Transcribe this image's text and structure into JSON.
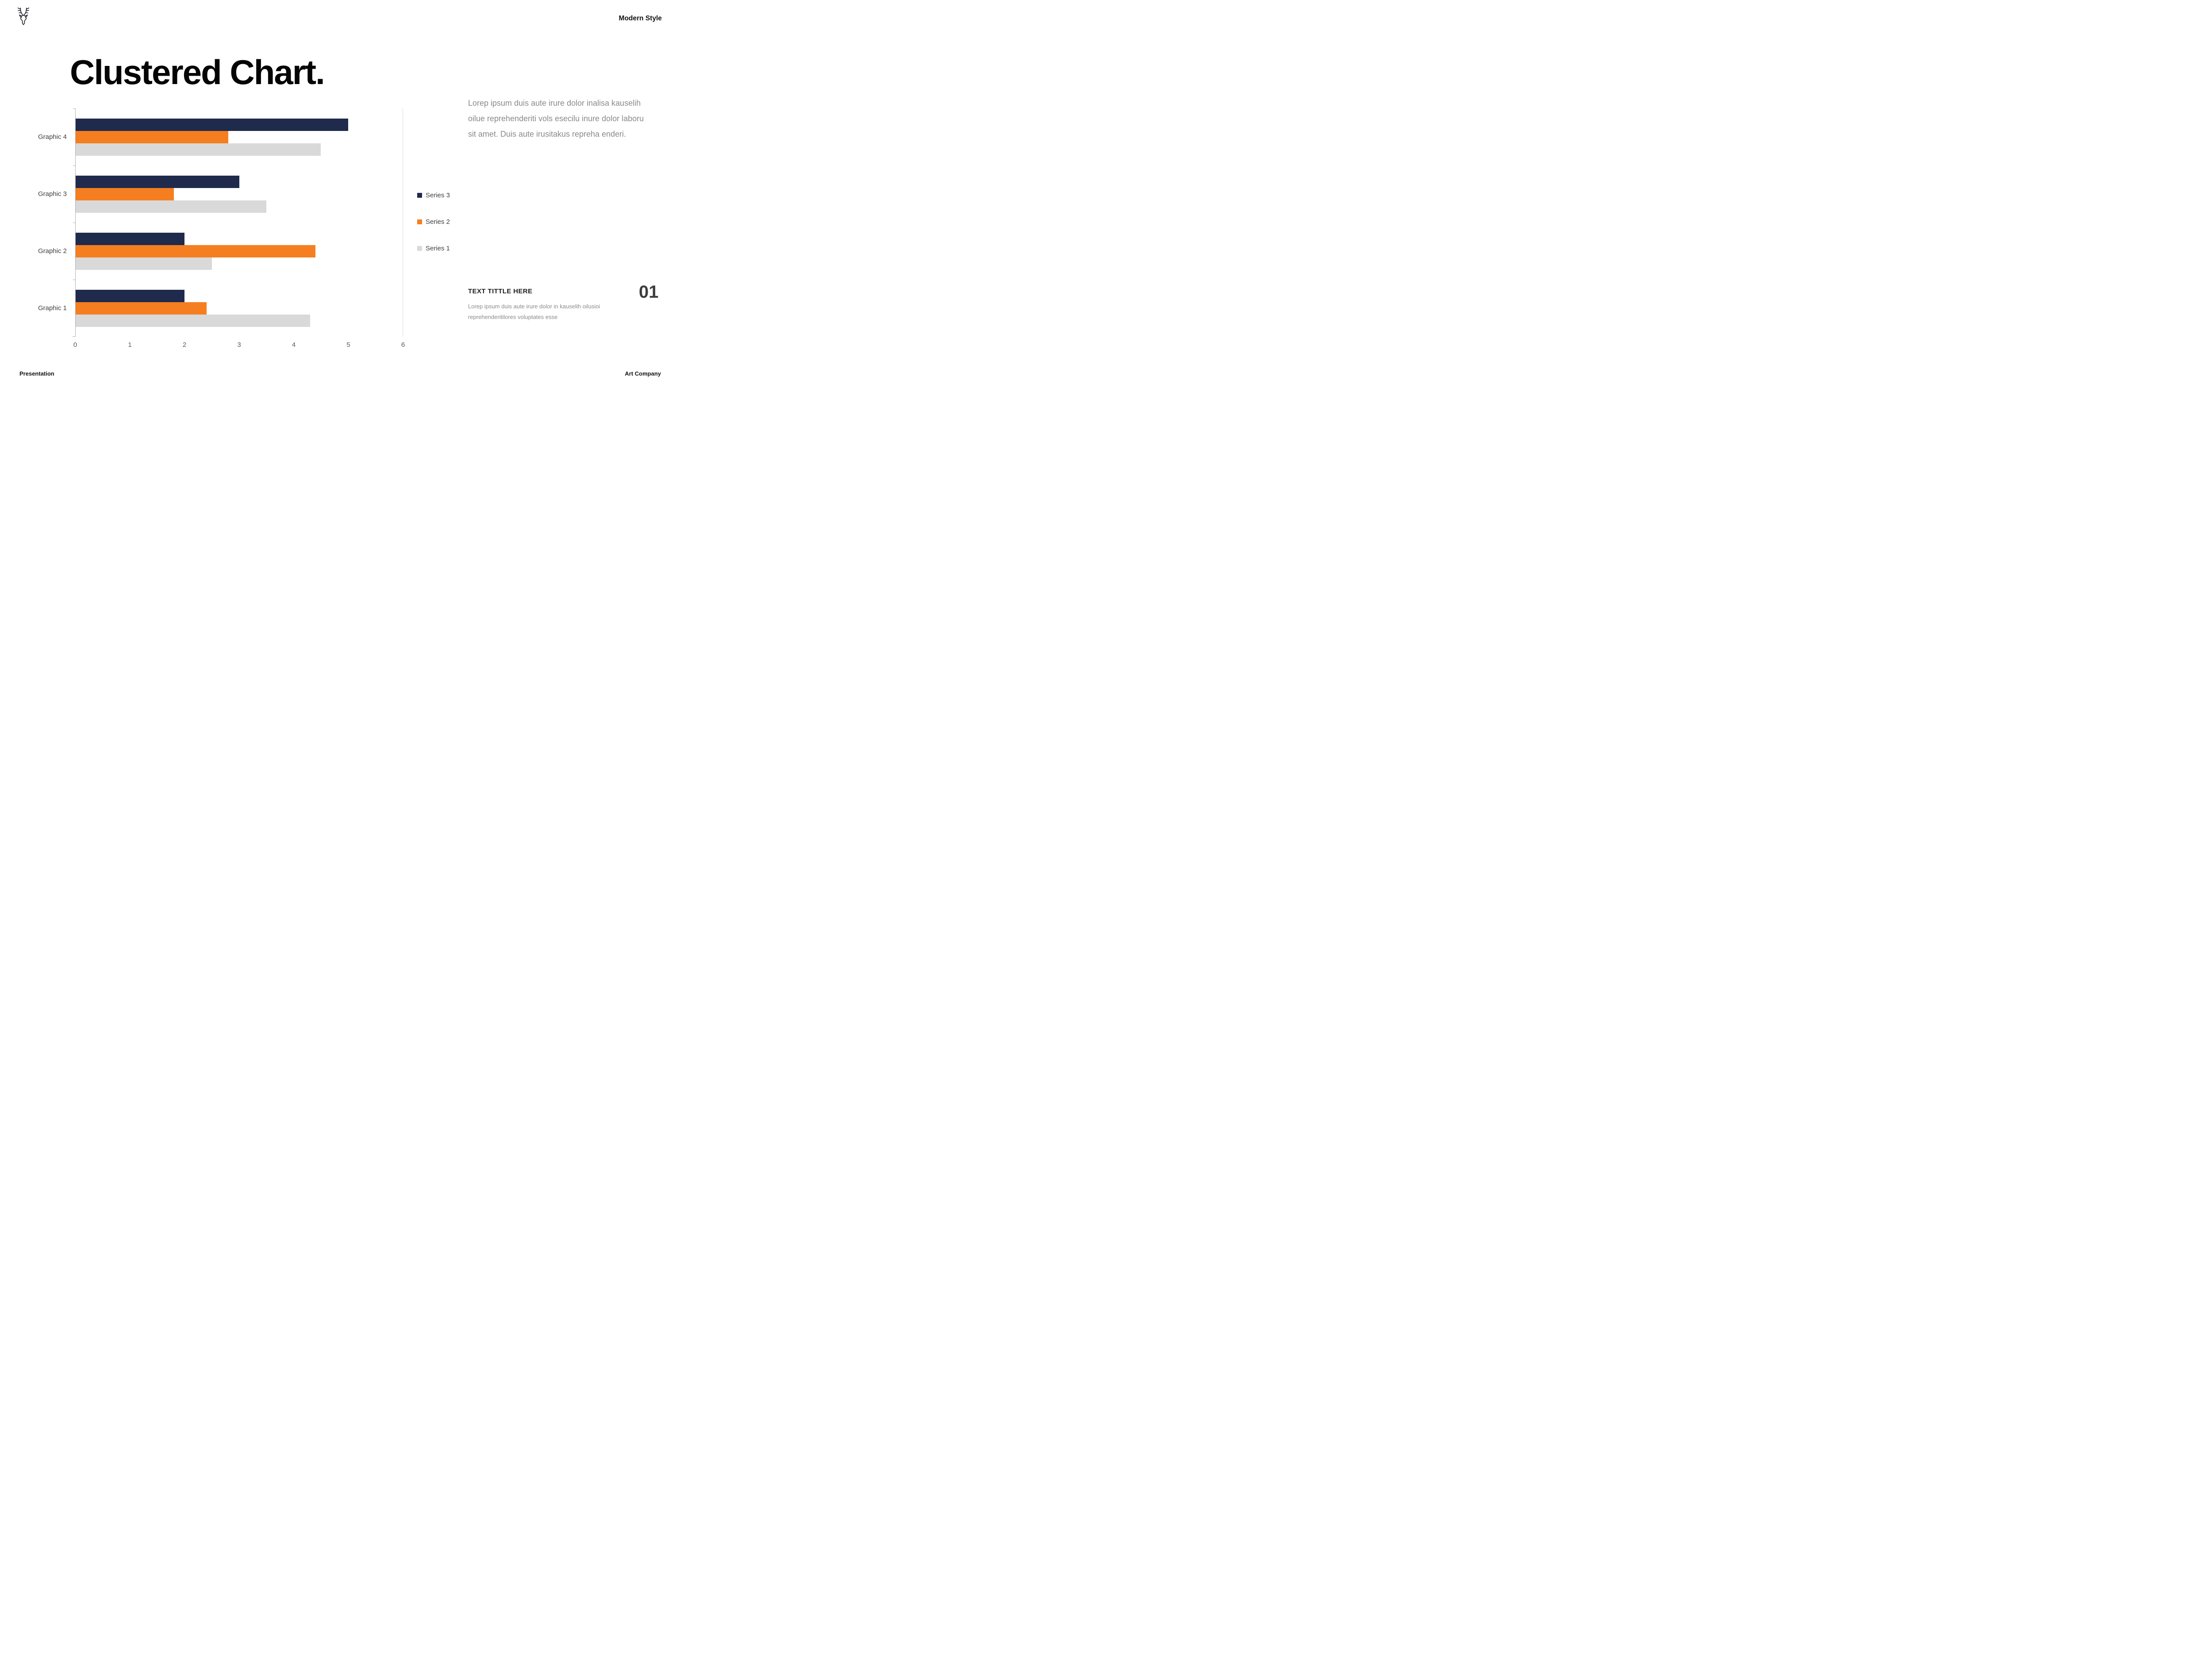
{
  "header": {
    "brand": "Modern Style"
  },
  "title": "Clustered Chart.",
  "lead_paragraph": "Lorep  ipsum duis aute irure dolor inalisa kauselih oilue reprehenderiti vols esecilu inure dolor laboru sit amet. Duis aute irusitakus repreha enderi.",
  "info": {
    "heading": "TEXT TITTLE HERE",
    "number": "01",
    "body": "Lorep  ipsum duis aute irure dolor in kauselih oilusioi reprehenderitilores voluptates esse"
  },
  "footer": {
    "left": "Presentation",
    "right": "Art Company"
  },
  "icons": {
    "logo": "deer-head-icon"
  },
  "colors": {
    "series3": "#1f2a4c",
    "series2": "#f57e20",
    "series1": "#d9d9d9",
    "axis": "#aeaeae",
    "muted_text": "#8a8a8a"
  },
  "chart_data": {
    "type": "bar",
    "orientation": "horizontal",
    "title": "Clustered Chart.",
    "categories": [
      "Graphic 4",
      "Graphic 3",
      "Graphic 2",
      "Graphic 1"
    ],
    "series": [
      {
        "name": "Series 3",
        "color": "#1f2a4c",
        "values": [
          5.0,
          3.0,
          2.0,
          2.0
        ]
      },
      {
        "name": "Series 2",
        "color": "#f57e20",
        "values": [
          2.8,
          1.8,
          4.4,
          2.4
        ]
      },
      {
        "name": "Series 1",
        "color": "#d9d9d9",
        "values": [
          4.5,
          3.5,
          2.5,
          4.3
        ]
      }
    ],
    "xlim": [
      0,
      6
    ],
    "xticks": [
      0,
      1,
      2,
      3,
      4,
      5,
      6
    ],
    "xlabel": "",
    "ylabel": "",
    "grid": false,
    "legend_position": "right",
    "legend_order": [
      "Series 3",
      "Series 2",
      "Series 1"
    ]
  }
}
